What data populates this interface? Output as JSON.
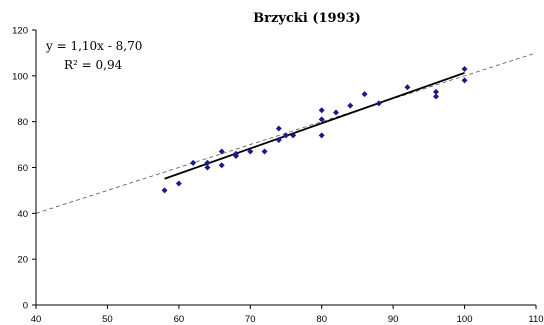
{
  "chart_data": {
    "type": "scatter",
    "title": "Brzycki (1993)",
    "xlabel": "",
    "ylabel": "",
    "xlim": [
      40,
      110
    ],
    "ylim": [
      0,
      120
    ],
    "x_ticks": [
      "40",
      "50",
      "60",
      "70",
      "80",
      "90",
      "100",
      "110"
    ],
    "y_ticks": [
      "0",
      "20",
      "40",
      "60",
      "80",
      "100",
      "120"
    ],
    "grid": false,
    "series": [
      {
        "marker": "diamond",
        "color": "#1a1a8c",
        "points": [
          [
            58,
            50
          ],
          [
            60,
            53
          ],
          [
            62,
            62
          ],
          [
            64,
            62
          ],
          [
            64,
            60
          ],
          [
            66,
            67
          ],
          [
            66,
            61
          ],
          [
            68,
            66
          ],
          [
            68,
            65
          ],
          [
            70,
            67
          ],
          [
            72,
            67
          ],
          [
            74,
            77
          ],
          [
            74,
            72
          ],
          [
            75,
            74
          ],
          [
            76,
            74
          ],
          [
            80,
            85
          ],
          [
            80,
            81
          ],
          [
            80,
            74
          ],
          [
            82,
            84
          ],
          [
            84,
            87
          ],
          [
            86,
            92
          ],
          [
            88,
            88
          ],
          [
            92,
            95
          ],
          [
            96,
            93
          ],
          [
            96,
            91
          ],
          [
            100,
            103
          ],
          [
            100,
            98
          ]
        ]
      }
    ],
    "trendline": {
      "equation": "y = 1,10x - 8,70",
      "r_squared": "R² = 0,94",
      "slope": 1.1,
      "intercept": -8.7,
      "x_range": [
        58,
        100
      ]
    },
    "reference_line": {
      "style": "dashed",
      "slope": 1,
      "intercept": 0,
      "x_range": [
        40,
        110
      ]
    }
  }
}
